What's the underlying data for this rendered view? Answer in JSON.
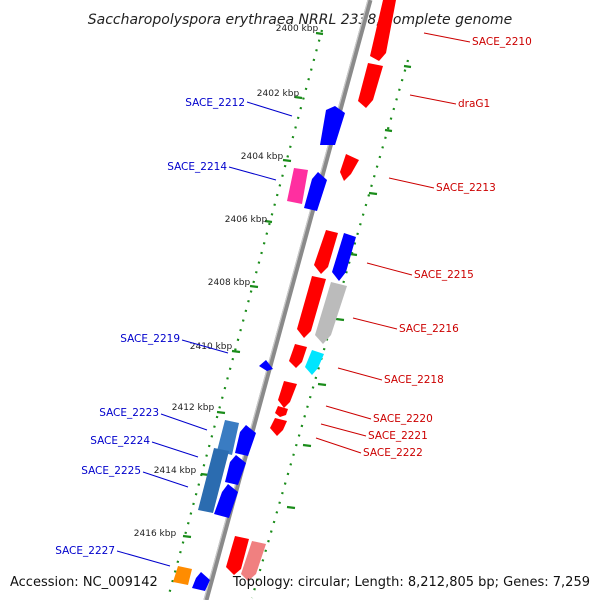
{
  "title": "Saccharopolyspora erythraea NRRL 2338, complete genome",
  "footer": {
    "accession": "Accession: NC_009142",
    "topology": "Topology: circular; Length: 8,212,805 bp; Genes: 7,259"
  },
  "colors": {
    "reverse_label": "#0000cc",
    "forward_label": "#cc0000",
    "ruler": "#1a8c1a",
    "backbone": "#8a8a8a"
  },
  "ticks": [
    "2400 kbp",
    "2402 kbp",
    "2404 kbp",
    "2406 kbp",
    "2408 kbp",
    "2410 kbp",
    "2412 kbp",
    "2414 kbp",
    "2416 kbp"
  ],
  "genes": [
    {
      "label": "SACE_2210",
      "strand": "forward",
      "color": "#ff0000"
    },
    {
      "label": "draG1",
      "strand": "forward",
      "color": "#ff0000"
    },
    {
      "label": "SACE_2212",
      "strand": "reverse",
      "color": "#0000ff"
    },
    {
      "label": "SACE_2213",
      "strand": "forward",
      "color": "#ff0000"
    },
    {
      "label": "SACE_2214",
      "strand": "reverse",
      "color": "#0000ff"
    },
    {
      "label": "SACE_2215",
      "strand": "forward",
      "color": "#0000ff"
    },
    {
      "label": "SACE_2216",
      "strand": "forward",
      "color": "#bbbbbb"
    },
    {
      "label": "SACE_2218",
      "strand": "forward",
      "color": "#00e5ff"
    },
    {
      "label": "SACE_2219",
      "strand": "reverse",
      "color": "#0000ff"
    },
    {
      "label": "SACE_2220",
      "strand": "forward",
      "color": "#ff0000"
    },
    {
      "label": "SACE_2221",
      "strand": "forward",
      "color": "#ff0000"
    },
    {
      "label": "SACE_2222",
      "strand": "forward",
      "color": "#ff0000"
    },
    {
      "label": "SACE_2223",
      "strand": "reverse",
      "color": "#0000ff"
    },
    {
      "label": "SACE_2224",
      "strand": "reverse",
      "color": "#0000ff"
    },
    {
      "label": "SACE_2225",
      "strand": "reverse",
      "color": "#0000ff"
    },
    {
      "label": "SACE_2227",
      "strand": "reverse",
      "color": "#0000ff"
    }
  ]
}
